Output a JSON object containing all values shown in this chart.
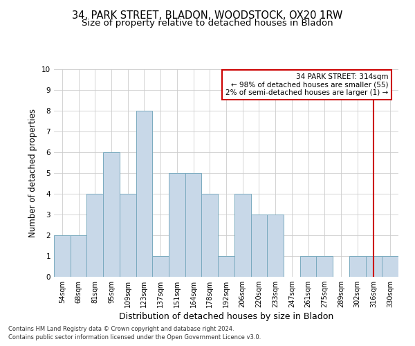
{
  "title_line1": "34, PARK STREET, BLADON, WOODSTOCK, OX20 1RW",
  "title_line2": "Size of property relative to detached houses in Bladon",
  "xlabel": "Distribution of detached houses by size in Bladon",
  "ylabel": "Number of detached properties",
  "categories": [
    "54sqm",
    "68sqm",
    "81sqm",
    "95sqm",
    "109sqm",
    "123sqm",
    "137sqm",
    "151sqm",
    "164sqm",
    "178sqm",
    "192sqm",
    "206sqm",
    "220sqm",
    "233sqm",
    "247sqm",
    "261sqm",
    "275sqm",
    "289sqm",
    "302sqm",
    "316sqm",
    "330sqm"
  ],
  "values": [
    2,
    2,
    4,
    6,
    4,
    8,
    1,
    5,
    5,
    4,
    1,
    4,
    3,
    3,
    0,
    1,
    1,
    0,
    1,
    1,
    1
  ],
  "bar_color": "#c8d8e8",
  "bar_edgecolor": "#7aaabf",
  "grid_color": "#cccccc",
  "ylim": [
    0,
    10
  ],
  "yticks": [
    0,
    1,
    2,
    3,
    4,
    5,
    6,
    7,
    8,
    9,
    10
  ],
  "annotation_box_text": "34 PARK STREET: 314sqm\n← 98% of detached houses are smaller (55)\n2% of semi-detached houses are larger (1) →",
  "annotation_box_color": "#cc0000",
  "vline_x": 19.5,
  "vline_color": "#cc0000",
  "footer_line1": "Contains HM Land Registry data © Crown copyright and database right 2024.",
  "footer_line2": "Contains public sector information licensed under the Open Government Licence v3.0.",
  "title_fontsize": 10.5,
  "subtitle_fontsize": 9.5,
  "tick_fontsize": 7,
  "ylabel_fontsize": 8.5,
  "xlabel_fontsize": 9,
  "annotation_fontsize": 7.5,
  "footer_fontsize": 6
}
